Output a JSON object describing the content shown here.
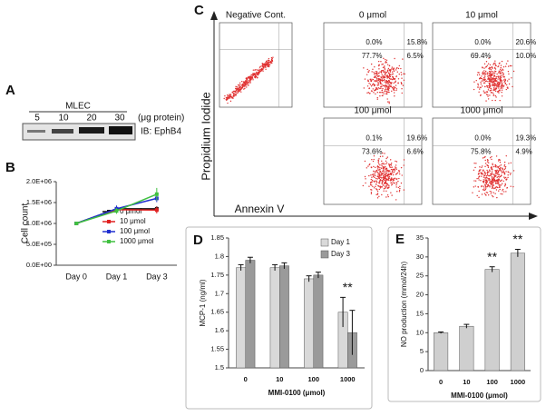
{
  "panel_a": {
    "label": "A",
    "cell_line": "MLEC",
    "lanes": [
      "5",
      "10",
      "20",
      "30"
    ],
    "unit": "(μg protein)",
    "blot_label": "IB: EphB4"
  },
  "panel_c": {
    "label": "C",
    "y_axis_label": "Propidium Iodide",
    "x_axis_label": "Annexin V",
    "plots": [
      {
        "title": "Negative Cont."
      },
      {
        "title": "0 μmol",
        "quadrants": [
          "0.0%",
          "15.8%",
          "77.7%",
          "6.5%"
        ]
      },
      {
        "title": "10 μmol",
        "quadrants": [
          "0.0%",
          "20.6%",
          "69.4%",
          "10.0%"
        ]
      },
      {
        "title": "100 μmol",
        "quadrants": [
          "0.1%",
          "19.6%",
          "73.6%",
          "6.6%"
        ]
      },
      {
        "title": "1000 μmol",
        "quadrants": [
          "0.0%",
          "19.3%",
          "75.8%",
          "4.9%"
        ]
      }
    ]
  },
  "chart_data": [
    {
      "type": "line",
      "label": "B",
      "y_label": "Cell count",
      "categories": [
        "Day 0",
        "Day 1",
        "Day 3"
      ],
      "ylim": [
        0,
        2000000
      ],
      "yticks": [
        {
          "value": 0,
          "label": "0.0E+00"
        },
        {
          "value": 500000,
          "label": "5.0E+05"
        },
        {
          "value": 1000000,
          "label": "1.0E+06"
        },
        {
          "value": 1500000,
          "label": "1.5E+06"
        },
        {
          "value": 2000000,
          "label": "2.0E+06"
        }
      ],
      "series": [
        {
          "name": "0 μmol",
          "color": "#111111",
          "values": [
            1000000,
            1350000,
            1350000
          ],
          "errors": [
            20000,
            50000,
            60000
          ]
        },
        {
          "name": "10 μmol",
          "color": "#e02020",
          "values": [
            1000000,
            1330000,
            1320000
          ],
          "errors": [
            20000,
            60000,
            80000
          ]
        },
        {
          "name": "100 μmol",
          "color": "#2030d0",
          "values": [
            1000000,
            1350000,
            1600000
          ],
          "errors": [
            20000,
            80000,
            90000
          ]
        },
        {
          "name": "1000 μmol",
          "color": "#40c040",
          "values": [
            1000000,
            1300000,
            1700000
          ],
          "errors": [
            20000,
            70000,
            150000
          ]
        }
      ]
    },
    {
      "type": "bar",
      "label": "D",
      "y_label": "MCP-1 (ng/ml)",
      "x_label": "MMI-0100 (μmol)",
      "categories": [
        "0",
        "10",
        "100",
        "1000"
      ],
      "ylim": [
        1.5,
        1.85
      ],
      "yticks": [
        1.5,
        1.55,
        1.6,
        1.65,
        1.7,
        1.75,
        1.8,
        1.85
      ],
      "annotations": [
        "**"
      ],
      "series": [
        {
          "name": "Day 1",
          "color": "#d9d9d9",
          "values": [
            1.77,
            1.77,
            1.74,
            1.65
          ],
          "errors": [
            0.008,
            0.008,
            0.008,
            0.04
          ]
        },
        {
          "name": "Day 3",
          "color": "#9a9a9a",
          "values": [
            1.79,
            1.775,
            1.75,
            1.595
          ],
          "errors": [
            0.008,
            0.008,
            0.008,
            0.06
          ]
        }
      ]
    },
    {
      "type": "bar",
      "label": "E",
      "y_label": "NO production (mmol/24h)",
      "x_label": "MMI-0100 (μmol)",
      "categories": [
        "0",
        "10",
        "100",
        "1000"
      ],
      "ylim": [
        0,
        35
      ],
      "yticks": [
        0,
        5,
        10,
        15,
        20,
        25,
        30,
        35
      ],
      "annotations": [
        "**",
        "**"
      ],
      "color": "#cfcfcf",
      "values": [
        10,
        11.7,
        26.7,
        31
      ],
      "errors": [
        0.2,
        0.5,
        0.7,
        1.0
      ]
    }
  ]
}
